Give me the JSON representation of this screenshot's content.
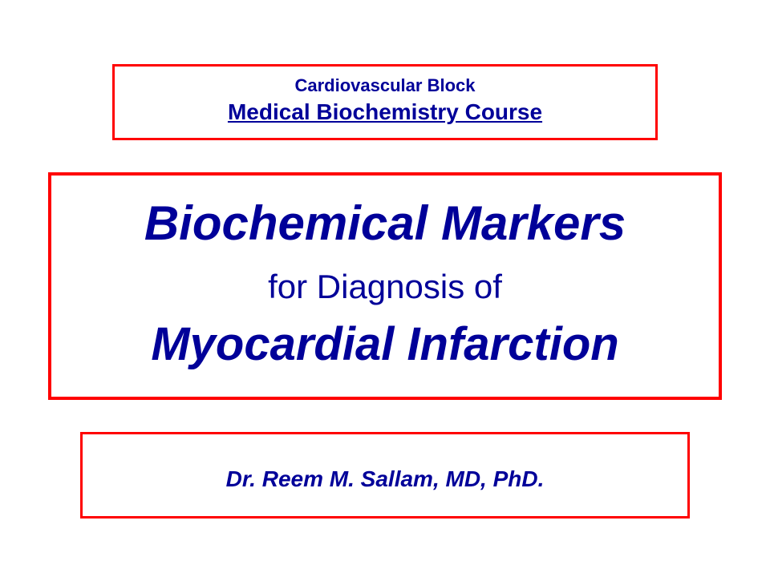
{
  "colors": {
    "border_red": "#ff0000",
    "text_navy": "#000099",
    "background": "#ffffff"
  },
  "header": {
    "line1": "Cardiovascular Block",
    "line2": "Medical Biochemistry Course"
  },
  "title": {
    "line1": "Biochemical Markers",
    "line2": "for Diagnosis of",
    "line3": "Myocardial Infarction"
  },
  "author": {
    "text": "Dr. Reem M. Sallam, MD, PhD."
  }
}
